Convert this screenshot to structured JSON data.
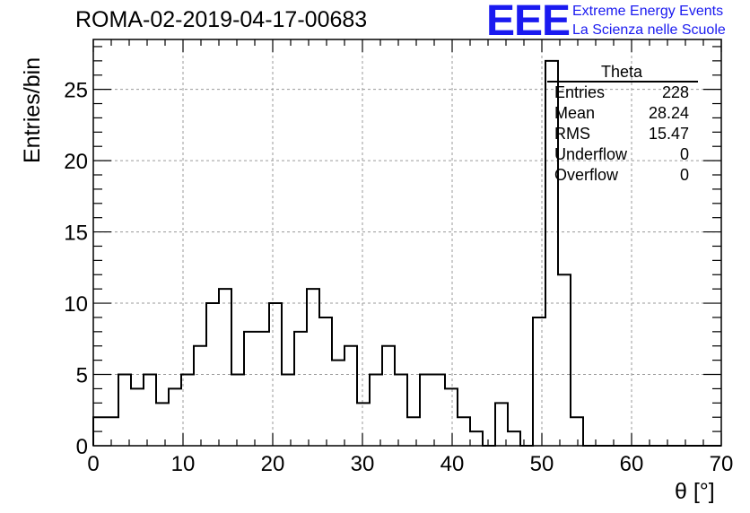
{
  "header": {
    "title": "ROMA-02-2019-04-17-00683",
    "logo_text": "EEE",
    "logo_line1": "Extreme Energy Events",
    "logo_line2": "La Scienza nelle Scuole",
    "logo_color": "#1a1af0"
  },
  "stats": {
    "title": "Theta",
    "rows": [
      {
        "key": "Entries",
        "value": "228"
      },
      {
        "key": "Mean",
        "value": "28.24"
      },
      {
        "key": "RMS",
        "value": "15.47"
      },
      {
        "key": "Underflow",
        "value": "0"
      },
      {
        "key": "Overflow",
        "value": "0"
      }
    ]
  },
  "chart_data": {
    "type": "bar",
    "histogram": true,
    "xlabel": "θ [°]",
    "ylabel": "Entries/bin",
    "xlim": [
      0,
      70
    ],
    "ylim": [
      0,
      28.5
    ],
    "bin_width": 1.4,
    "bin_values": [
      2,
      2,
      5,
      4,
      5,
      3,
      4,
      5,
      7,
      10,
      11,
      5,
      8,
      8,
      10,
      5,
      8,
      11,
      9,
      6,
      7,
      3,
      5,
      7,
      5,
      2,
      5,
      5,
      4,
      2,
      1,
      0,
      3,
      1,
      0,
      9,
      27,
      12,
      2,
      0,
      0,
      0,
      0,
      0,
      0,
      0,
      0,
      0,
      0,
      0
    ],
    "xticks": [
      0,
      10,
      20,
      30,
      40,
      50,
      60,
      70
    ],
    "yticks": [
      0,
      5,
      10,
      15,
      20,
      25
    ],
    "grid": true,
    "line_color": "#000000",
    "grid_color": "#9a9a9a"
  }
}
